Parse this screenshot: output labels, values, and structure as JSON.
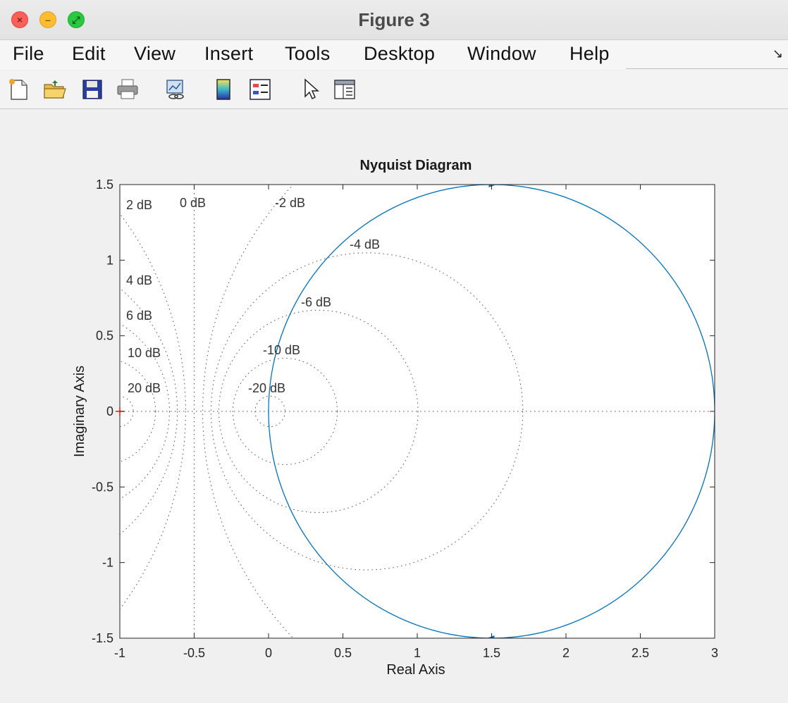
{
  "window": {
    "title": "Figure 3"
  },
  "menu": {
    "items": [
      "File",
      "Edit",
      "View",
      "Insert",
      "Tools",
      "Desktop",
      "Window",
      "Help"
    ]
  },
  "toolbar": {
    "icons": [
      "new-figure-icon",
      "open-file-icon",
      "save-icon",
      "print-icon",
      "link-plot-icon",
      "colorbar-icon",
      "legend-icon",
      "pointer-icon",
      "property-inspector-icon"
    ]
  },
  "chart_data": {
    "type": "line",
    "title": "Nyquist Diagram",
    "xlabel": "Real Axis",
    "ylabel": "Imaginary Axis",
    "xlim": [
      -1,
      3
    ],
    "ylim": [
      -1.5,
      1.5
    ],
    "xticks": [
      "-1",
      "-0.5",
      "0",
      "0.5",
      "1",
      "1.5",
      "2",
      "2.5",
      "3"
    ],
    "yticks": [
      "1.5",
      "1",
      "0.5",
      "0",
      "-0.5",
      "-1",
      "-1.5"
    ],
    "grid": "M-circles (dB)",
    "critical_point": {
      "x": -1,
      "y": 0,
      "color": "#ff0000"
    },
    "series": [
      {
        "center": [
          1.5,
          0
        ],
        "radius": 1.5,
        "color": "#0072bd",
        "arrows_at_y": [
          1.5,
          -1.5
        ]
      }
    ],
    "m_circles": [
      {
        "label": "2 dB",
        "db": 2
      },
      {
        "label": "0 dB",
        "db": 0
      },
      {
        "label": "-2 dB",
        "db": -2
      },
      {
        "label": "-4 dB",
        "db": -4
      },
      {
        "label": "4 dB",
        "db": 4
      },
      {
        "label": "-6 dB",
        "db": -6
      },
      {
        "label": "6 dB",
        "db": 6
      },
      {
        "label": "-10 dB",
        "db": -10
      },
      {
        "label": "10 dB",
        "db": 10
      },
      {
        "label": "-20 dB",
        "db": -20
      },
      {
        "label": "20 dB",
        "db": 20
      }
    ]
  }
}
